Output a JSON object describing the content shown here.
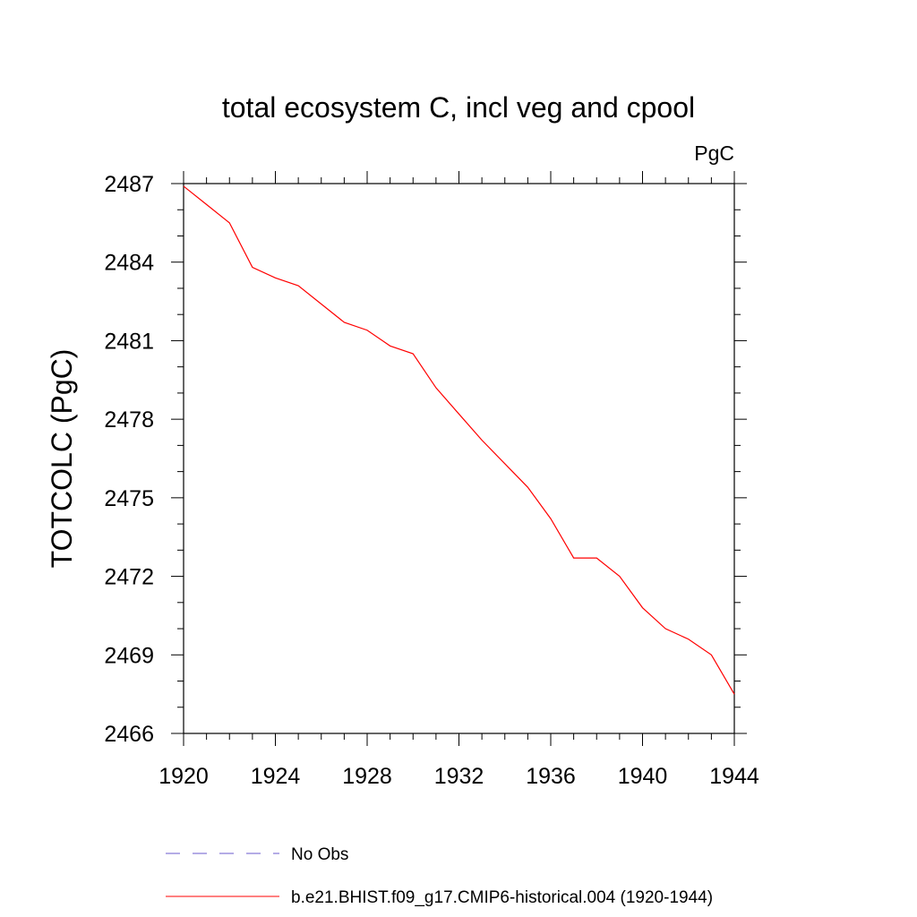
{
  "chart_data": {
    "type": "line",
    "title": "total ecosystem C, incl veg and cpool",
    "units": "PgC",
    "ylabel": "TOTCOLC  (PgC)",
    "xlabel": "",
    "xlim": [
      1920,
      1944
    ],
    "ylim": [
      2466,
      2487
    ],
    "x_ticks": [
      "1920",
      "1924",
      "1928",
      "1932",
      "1936",
      "1940",
      "1944"
    ],
    "y_ticks": [
      "2466",
      "2469",
      "2472",
      "2475",
      "2478",
      "2481",
      "2484",
      "2487"
    ],
    "grid": false,
    "legend_placement": "bottom",
    "series": [
      {
        "name": "No Obs",
        "color": "#6a5acd",
        "style": "dashed",
        "x": [],
        "y": []
      },
      {
        "name": "b.e21.BHIST.f09_g17.CMIP6-historical.004 (1920-1944)",
        "color": "#ff0000",
        "style": "solid",
        "x": [
          1920,
          1921,
          1922,
          1923,
          1924,
          1925,
          1926,
          1927,
          1928,
          1929,
          1930,
          1931,
          1932,
          1933,
          1934,
          1935,
          1936,
          1937,
          1938,
          1939,
          1940,
          1941,
          1942,
          1943,
          1944
        ],
        "y": [
          2486.9,
          2486.2,
          2485.5,
          2483.8,
          2483.4,
          2483.1,
          2482.4,
          2481.7,
          2481.4,
          2480.8,
          2480.5,
          2479.2,
          2478.2,
          2477.2,
          2476.3,
          2475.4,
          2474.2,
          2472.7,
          2472.7,
          2472.0,
          2470.8,
          2470.0,
          2469.6,
          2469.0,
          2467.5
        ]
      }
    ]
  }
}
